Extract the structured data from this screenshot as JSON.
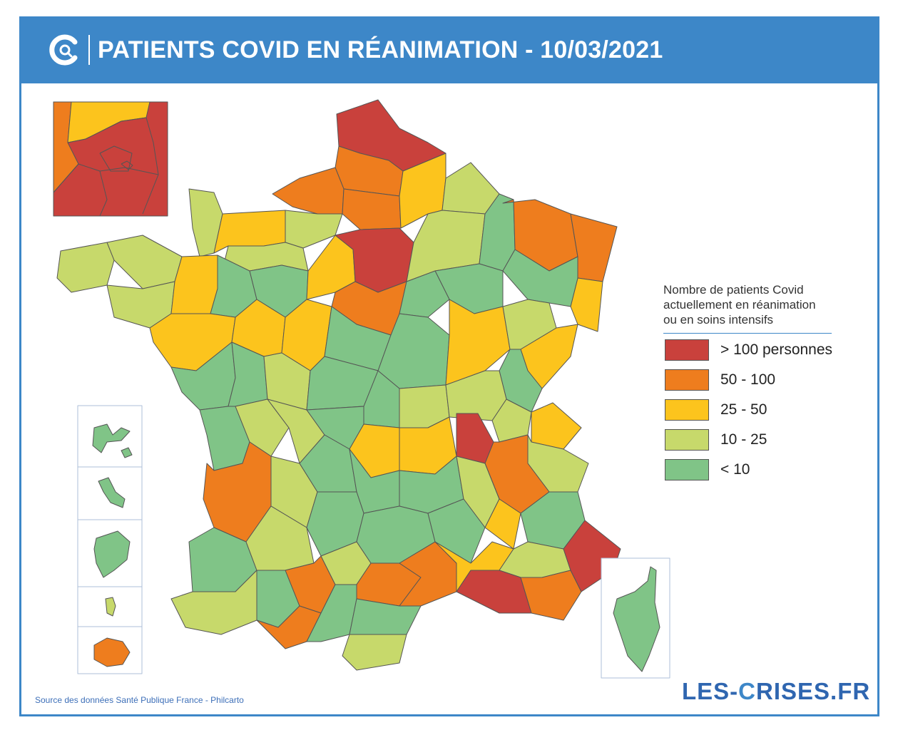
{
  "header": {
    "title": "PATIENTS COVID EN RÉANIMATION - 10/03/2021",
    "bg_color": "#3d87c8",
    "logo_icon": "les-crises-c-logo-icon"
  },
  "legend": {
    "title_lines": [
      "Nombre de patients Covid",
      "actuellement en réanimation",
      "ou en soins intensifs"
    ],
    "items": [
      {
        "label": "> 100 personnes",
        "color": "#c9413c"
      },
      {
        "label": "50 - 100",
        "color": "#ee7d1e"
      },
      {
        "label": "25 - 50",
        "color": "#fcc41d"
      },
      {
        "label": "10 - 25",
        "color": "#c7d96b"
      },
      {
        "label": "< 10",
        "color": "#80c487"
      }
    ]
  },
  "footer": {
    "source": "Source des données Santé Publique France - Philcarto",
    "brand_left": "LES-",
    "brand_c": "C",
    "brand_right": "RISES.FR"
  },
  "map": {
    "inset_paris": "paris-region-inset",
    "inset_overseas": [
      "guadeloupe",
      "martinique",
      "guyane",
      "mayotte",
      "la-reunion"
    ],
    "inset_corsica": "corse"
  }
}
